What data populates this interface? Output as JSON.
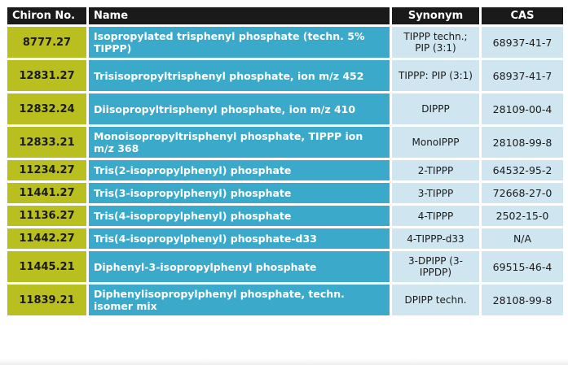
{
  "table": {
    "headers": {
      "chiron": "Chiron No.",
      "name": "Name",
      "synonym": "Synonym",
      "cas": "CAS"
    },
    "rows": [
      {
        "chiron": "8777.27",
        "name": "Isopropylated trisphenyl phosphate (techn. 5% TIPPP)",
        "synonym": "TIPPP techn.; PIP (3:1)",
        "cas": "68937-41-7"
      },
      {
        "chiron": "12831.27",
        "name": "Trisisopropyltrisphenyl phosphate, ion m/z 452",
        "synonym": "TIPPP: PIP (3:1)",
        "cas": "68937-41-7"
      },
      {
        "chiron": "12832.24",
        "name": "Diisopropyltrisphenyl phosphate, ion m/z 410",
        "synonym": "DIPPP",
        "cas": "28109-00-4"
      },
      {
        "chiron": "12833.21",
        "name": "Monoisopropyltrisphenyl phosphate, TIPPP ion m/z 368",
        "synonym": "MonoIPPP",
        "cas": "28108-99-8"
      },
      {
        "chiron": "11234.27",
        "name": "Tris(2-isopropylphenyl) phosphate",
        "synonym": "2-TIPPP",
        "cas": "64532-95-2"
      },
      {
        "chiron": "11441.27",
        "name": "Tris(3-isopropylphenyl) phosphate",
        "synonym": "3-TIPPP",
        "cas": "72668-27-0"
      },
      {
        "chiron": "11136.27",
        "name": "Tris(4-isopropylphenyl) phosphate",
        "synonym": "4-TIPPP",
        "cas": "2502-15-0"
      },
      {
        "chiron": "11442.27",
        "name": "Tris(4-isopropylphenyl) phosphate-d33",
        "synonym": "4-TIPPP-d33",
        "cas": "N/A"
      },
      {
        "chiron": "11445.21",
        "name": "Diphenyl-3-isopropylphenyl phosphate",
        "synonym": "3-DPIPP (3-IPPDP)",
        "cas": "69515-46-4"
      },
      {
        "chiron": "11839.21",
        "name": "Diphenylisopropylphenyl phosphate, techn. isomer mix",
        "synonym": "DPIPP techn.",
        "cas": "28108-99-8"
      }
    ]
  },
  "colors": {
    "header_bg": "#1a1a1a",
    "chiron_bg": "#b8bf1f",
    "name_bg": "#3ba9c9",
    "value_bg": "#cfe6f1"
  }
}
